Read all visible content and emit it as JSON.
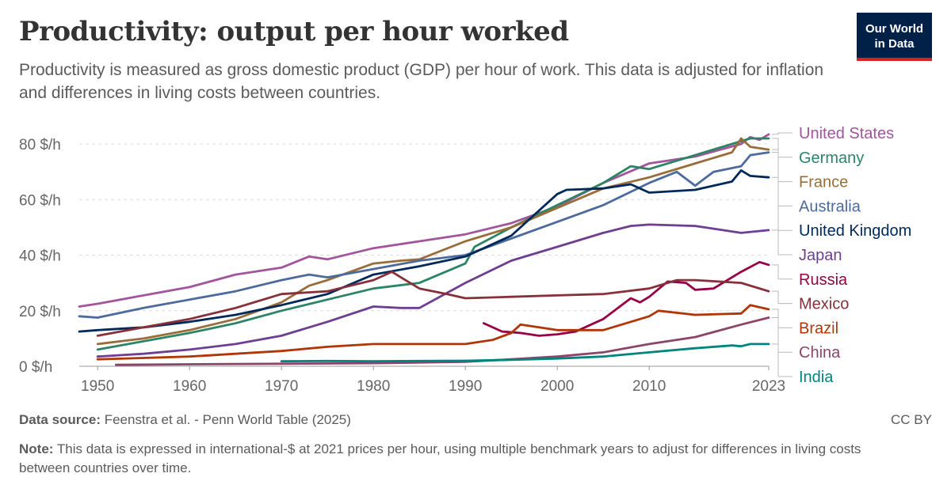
{
  "header": {
    "title": "Productivity: output per hour worked",
    "subtitle": "Productivity is measured as gross domestic product (GDP) per hour of work. This data is adjusted for inflation and differences in living costs between countries.",
    "logo_line1": "Our World",
    "logo_line2": "in Data",
    "logo_color": "#002147",
    "logo_accent": "#ce261e"
  },
  "footer": {
    "source_label": "Data source:",
    "source_text": "Feenstra et al. - Penn World Table (2025)",
    "license": "CC BY",
    "note_label": "Note:",
    "note_text": "This data is expressed in international-$ at 2021 prices per hour, using multiple benchmark years to adjust for differences in living costs between countries over time."
  },
  "chart_data": {
    "type": "line",
    "xlim": [
      1948,
      2023
    ],
    "ylim": [
      0,
      84
    ],
    "x_ticks": [
      1950,
      1960,
      1970,
      1980,
      1990,
      2000,
      2010,
      2023
    ],
    "y_ticks": [
      0,
      20,
      40,
      60,
      80
    ],
    "y_tick_labels": [
      "0 $/h",
      "20 $/h",
      "40 $/h",
      "60 $/h",
      "80 $/h"
    ],
    "grid": "horizontal dashed",
    "legend": "right",
    "series": [
      {
        "name": "United States",
        "color": "#a2559c",
        "points": [
          [
            1948,
            21.5
          ],
          [
            1950,
            22.5
          ],
          [
            1955,
            25.5
          ],
          [
            1960,
            28.5
          ],
          [
            1965,
            33
          ],
          [
            1970,
            35.5
          ],
          [
            1973,
            39.5
          ],
          [
            1975,
            38.5
          ],
          [
            1980,
            42.5
          ],
          [
            1985,
            45
          ],
          [
            1990,
            47.5
          ],
          [
            1995,
            51.5
          ],
          [
            2000,
            57.5
          ],
          [
            2005,
            66
          ],
          [
            2010,
            73
          ],
          [
            2015,
            75.5
          ],
          [
            2020,
            80
          ],
          [
            2021,
            82.5
          ],
          [
            2022,
            81.5
          ],
          [
            2023,
            83.5
          ]
        ]
      },
      {
        "name": "Germany",
        "color": "#2c8465",
        "points": [
          [
            1950,
            6
          ],
          [
            1955,
            9
          ],
          [
            1960,
            12
          ],
          [
            1965,
            15.5
          ],
          [
            1970,
            20
          ],
          [
            1975,
            24
          ],
          [
            1980,
            28
          ],
          [
            1985,
            30
          ],
          [
            1990,
            37
          ],
          [
            1991,
            43
          ],
          [
            1995,
            50
          ],
          [
            2000,
            58
          ],
          [
            2005,
            66
          ],
          [
            2008,
            72
          ],
          [
            2010,
            71
          ],
          [
            2015,
            76
          ],
          [
            2019,
            80
          ],
          [
            2021,
            82
          ],
          [
            2023,
            82
          ]
        ]
      },
      {
        "name": "France",
        "color": "#996d39",
        "points": [
          [
            1950,
            8
          ],
          [
            1955,
            10
          ],
          [
            1960,
            13
          ],
          [
            1965,
            17
          ],
          [
            1970,
            23
          ],
          [
            1973,
            29
          ],
          [
            1975,
            31
          ],
          [
            1980,
            37
          ],
          [
            1983,
            38
          ],
          [
            1985,
            38.5
          ],
          [
            1990,
            45
          ],
          [
            1995,
            50
          ],
          [
            2000,
            57
          ],
          [
            2005,
            64
          ],
          [
            2010,
            68
          ],
          [
            2015,
            73
          ],
          [
            2019,
            77
          ],
          [
            2020,
            82
          ],
          [
            2021,
            79
          ],
          [
            2023,
            78
          ]
        ]
      },
      {
        "name": "Australia",
        "color": "#4c6a9c",
        "points": [
          [
            1948,
            18
          ],
          [
            1950,
            17.5
          ],
          [
            1955,
            21
          ],
          [
            1960,
            24
          ],
          [
            1965,
            27
          ],
          [
            1970,
            31
          ],
          [
            1973,
            33
          ],
          [
            1975,
            32
          ],
          [
            1980,
            35
          ],
          [
            1985,
            38
          ],
          [
            1990,
            40
          ],
          [
            1995,
            46
          ],
          [
            2000,
            52
          ],
          [
            2005,
            58
          ],
          [
            2010,
            66
          ],
          [
            2013,
            70
          ],
          [
            2015,
            65
          ],
          [
            2017,
            70
          ],
          [
            2020,
            72
          ],
          [
            2021,
            76
          ],
          [
            2023,
            77
          ]
        ]
      },
      {
        "name": "United Kingdom",
        "color": "#00295b",
        "points": [
          [
            1948,
            12.5
          ],
          [
            1950,
            13
          ],
          [
            1955,
            14
          ],
          [
            1960,
            16
          ],
          [
            1965,
            18.5
          ],
          [
            1970,
            22
          ],
          [
            1975,
            26
          ],
          [
            1980,
            33
          ],
          [
            1985,
            36
          ],
          [
            1990,
            39.5
          ],
          [
            1995,
            47
          ],
          [
            2000,
            62
          ],
          [
            2001,
            63.5
          ],
          [
            2005,
            64
          ],
          [
            2008,
            65.5
          ],
          [
            2010,
            62.5
          ],
          [
            2015,
            63.5
          ],
          [
            2019,
            66.5
          ],
          [
            2020,
            70.5
          ],
          [
            2021,
            68.5
          ],
          [
            2023,
            68
          ]
        ]
      },
      {
        "name": "Japan",
        "color": "#6d3e91",
        "points": [
          [
            1950,
            3.5
          ],
          [
            1955,
            4.5
          ],
          [
            1960,
            6
          ],
          [
            1965,
            8
          ],
          [
            1970,
            11
          ],
          [
            1975,
            16
          ],
          [
            1980,
            21.5
          ],
          [
            1983,
            21
          ],
          [
            1985,
            21
          ],
          [
            1990,
            30
          ],
          [
            1995,
            38
          ],
          [
            2000,
            43
          ],
          [
            2005,
            48
          ],
          [
            2008,
            50.5
          ],
          [
            2010,
            51
          ],
          [
            2015,
            50.5
          ],
          [
            2020,
            48
          ],
          [
            2023,
            49
          ]
        ]
      },
      {
        "name": "Russia",
        "color": "#970046",
        "points": [
          [
            1992,
            15.5
          ],
          [
            1994,
            12.5
          ],
          [
            1996,
            12
          ],
          [
            1998,
            11
          ],
          [
            2000,
            11.5
          ],
          [
            2002,
            12.5
          ],
          [
            2005,
            17
          ],
          [
            2008,
            24.5
          ],
          [
            2009,
            23
          ],
          [
            2010,
            25
          ],
          [
            2012,
            30.5
          ],
          [
            2014,
            30
          ],
          [
            2015,
            27.5
          ],
          [
            2017,
            28
          ],
          [
            2020,
            34
          ],
          [
            2022,
            37.5
          ],
          [
            2023,
            36.5
          ]
        ]
      },
      {
        "name": "Mexico",
        "color": "#883039",
        "points": [
          [
            1950,
            11
          ],
          [
            1955,
            14
          ],
          [
            1960,
            17
          ],
          [
            1965,
            21
          ],
          [
            1970,
            26
          ],
          [
            1975,
            27
          ],
          [
            1980,
            31
          ],
          [
            1982,
            34
          ],
          [
            1985,
            28
          ],
          [
            1988,
            26
          ],
          [
            1990,
            24.5
          ],
          [
            1995,
            25
          ],
          [
            2000,
            25.5
          ],
          [
            2005,
            26
          ],
          [
            2010,
            28
          ],
          [
            2013,
            31
          ],
          [
            2015,
            31
          ],
          [
            2020,
            30
          ],
          [
            2023,
            27
          ]
        ]
      },
      {
        "name": "Brazil",
        "color": "#b13507",
        "points": [
          [
            1950,
            2.5
          ],
          [
            1955,
            3
          ],
          [
            1960,
            3.5
          ],
          [
            1965,
            4.5
          ],
          [
            1970,
            5.5
          ],
          [
            1975,
            7
          ],
          [
            1980,
            8
          ],
          [
            1985,
            8
          ],
          [
            1990,
            8
          ],
          [
            1993,
            9.5
          ],
          [
            1995,
            12
          ],
          [
            1996,
            15
          ],
          [
            2000,
            13
          ],
          [
            2005,
            13
          ],
          [
            2010,
            18
          ],
          [
            2011,
            20
          ],
          [
            2015,
            18.5
          ],
          [
            2020,
            19
          ],
          [
            2021,
            22
          ],
          [
            2023,
            20.5
          ]
        ]
      },
      {
        "name": "China",
        "color": "#8c4569",
        "points": [
          [
            1952,
            0.5
          ],
          [
            1960,
            0.7
          ],
          [
            1970,
            0.9
          ],
          [
            1980,
            1.1
          ],
          [
            1990,
            1.6
          ],
          [
            1995,
            2.5
          ],
          [
            2000,
            3.5
          ],
          [
            2005,
            5
          ],
          [
            2010,
            8
          ],
          [
            2015,
            10.5
          ],
          [
            2020,
            15
          ],
          [
            2023,
            17.5
          ]
        ]
      },
      {
        "name": "India",
        "color": "#00847e",
        "points": [
          [
            1970,
            1.8
          ],
          [
            1975,
            1.9
          ],
          [
            1980,
            1.8
          ],
          [
            1985,
            1.9
          ],
          [
            1990,
            2
          ],
          [
            1995,
            2.3
          ],
          [
            2000,
            2.8
          ],
          [
            2005,
            3.5
          ],
          [
            2010,
            5
          ],
          [
            2015,
            6.5
          ],
          [
            2019,
            7.5
          ],
          [
            2020,
            7.2
          ],
          [
            2021,
            8
          ],
          [
            2023,
            8
          ]
        ]
      }
    ]
  }
}
